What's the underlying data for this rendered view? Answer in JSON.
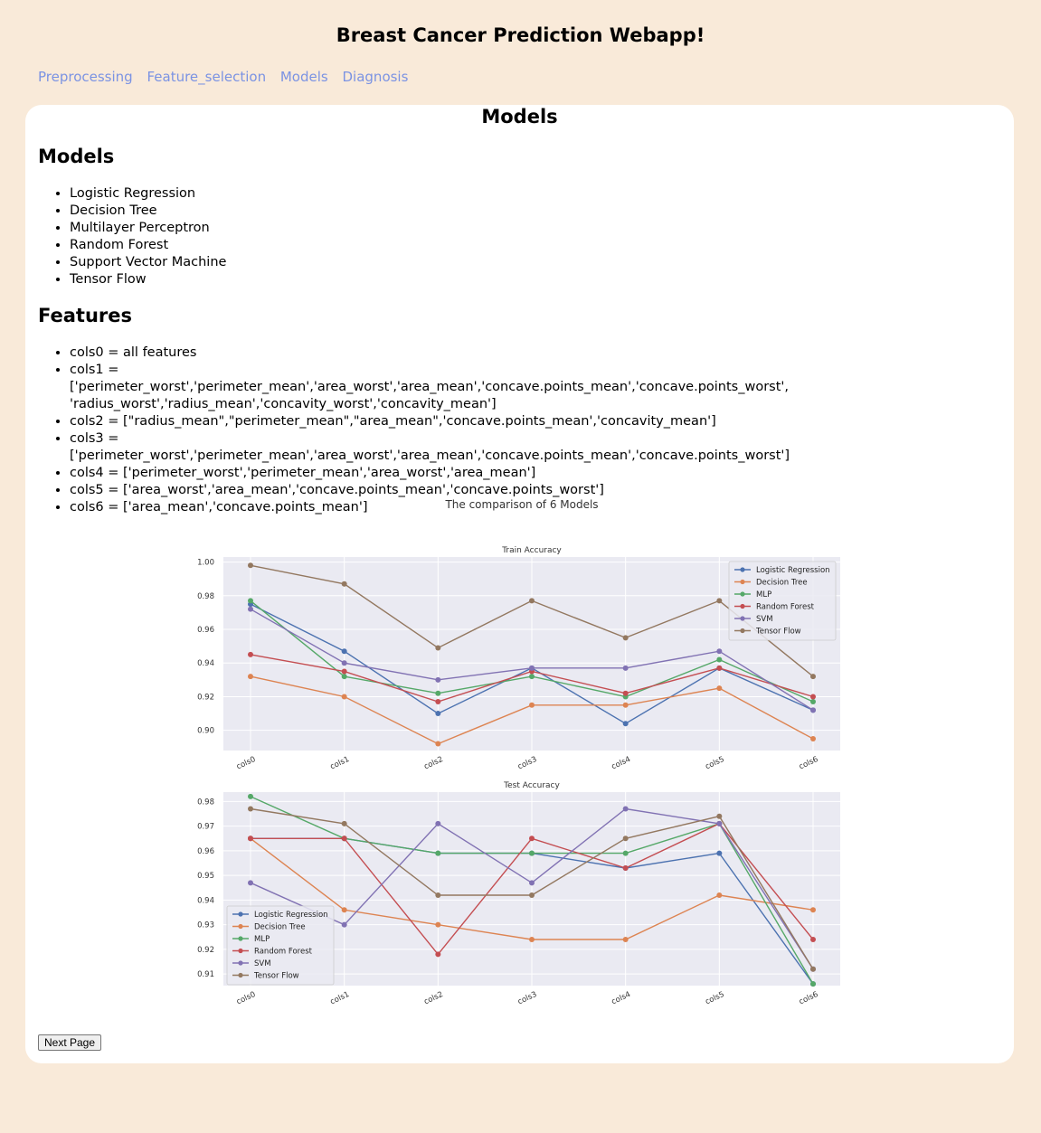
{
  "app": {
    "title": "Breast Cancer Prediction Webapp!"
  },
  "nav": [
    "Preprocessing",
    "Feature_selection",
    "Models",
    "Diagnosis"
  ],
  "page": {
    "title": "Models",
    "models_heading": "Models",
    "models": [
      "Logistic Regression",
      "Decision Tree",
      "Multilayer Perceptron",
      "Random Forest",
      "Support Vector Machine",
      "Tensor Flow"
    ],
    "features_heading": "Features",
    "features": [
      "cols0 = all features",
      "cols1 = ['perimeter_worst','perimeter_mean','area_worst','area_mean','concave.points_mean','concave.points_worst', 'radius_worst','radius_mean','concavity_worst','concavity_mean']",
      "cols2 = [\"radius_mean\",\"perimeter_mean\",\"area_mean\",'concave.points_mean','concavity_mean']",
      "cols3 = ['perimeter_worst','perimeter_mean','area_worst','area_mean','concave.points_mean','concave.points_worst']",
      "cols4 = ['perimeter_worst','perimeter_mean','area_worst','area_mean']",
      "cols5 = ['area_worst','area_mean','concave.points_mean','concave.points_worst']",
      "cols6 = ['area_mean','concave.points_mean']"
    ],
    "next_button": "Next Page"
  },
  "chart_data": [
    {
      "type": "line",
      "suptitle": "The comparison of 6 Models",
      "title": "Train Accuracy",
      "x": [
        "cols0",
        "cols1",
        "cols2",
        "cols3",
        "cols4",
        "cols5",
        "cols6"
      ],
      "ylim": [
        0.888,
        1.003
      ],
      "yticks": [
        0.9,
        0.92,
        0.94,
        0.96,
        0.98,
        1.0
      ],
      "yticklabels": [
        "0.90",
        "0.92",
        "0.94",
        "0.96",
        "0.98",
        "1.00"
      ],
      "legend": "top-right",
      "grid": true,
      "series": [
        {
          "name": "Logistic Regression",
          "color": "#4c72b0",
          "values": [
            0.975,
            0.947,
            0.91,
            0.937,
            0.904,
            0.937,
            0.912
          ]
        },
        {
          "name": "Decision Tree",
          "color": "#dd8452",
          "values": [
            0.932,
            0.92,
            0.892,
            0.915,
            0.915,
            0.925,
            0.895
          ]
        },
        {
          "name": "MLP",
          "color": "#55a868",
          "values": [
            0.977,
            0.932,
            0.922,
            0.932,
            0.92,
            0.942,
            0.917
          ]
        },
        {
          "name": "Random Forest",
          "color": "#c44e52",
          "values": [
            0.945,
            0.935,
            0.917,
            0.935,
            0.922,
            0.937,
            0.92
          ]
        },
        {
          "name": "SVM",
          "color": "#8172b3",
          "values": [
            0.972,
            0.94,
            0.93,
            0.937,
            0.937,
            0.947,
            0.912
          ]
        },
        {
          "name": "Tensor Flow",
          "color": "#937860",
          "values": [
            0.998,
            0.987,
            0.949,
            0.977,
            0.955,
            0.977,
            0.932
          ]
        }
      ]
    },
    {
      "type": "line",
      "title": "Test Accuracy",
      "x": [
        "cols0",
        "cols1",
        "cols2",
        "cols3",
        "cols4",
        "cols5",
        "cols6"
      ],
      "ylim": [
        0.9053,
        0.9838
      ],
      "yticks": [
        0.91,
        0.92,
        0.93,
        0.94,
        0.95,
        0.96,
        0.97,
        0.98
      ],
      "yticklabels": [
        "0.91",
        "0.92",
        "0.93",
        "0.94",
        "0.95",
        "0.96",
        "0.97",
        "0.98"
      ],
      "legend": "bottom-left",
      "grid": true,
      "series": [
        {
          "name": "Logistic Regression",
          "color": "#4c72b0",
          "values": [
            0.965,
            0.965,
            0.959,
            0.959,
            0.953,
            0.959,
            0.906
          ]
        },
        {
          "name": "Decision Tree",
          "color": "#dd8452",
          "values": [
            0.965,
            0.936,
            0.93,
            0.924,
            0.924,
            0.942,
            0.936
          ]
        },
        {
          "name": "MLP",
          "color": "#55a868",
          "values": [
            0.982,
            0.965,
            0.959,
            0.959,
            0.959,
            0.971,
            0.906
          ]
        },
        {
          "name": "Random Forest",
          "color": "#c44e52",
          "values": [
            0.965,
            0.965,
            0.918,
            0.965,
            0.953,
            0.971,
            0.924
          ]
        },
        {
          "name": "SVM",
          "color": "#8172b3",
          "values": [
            0.947,
            0.93,
            0.971,
            0.947,
            0.977,
            0.971,
            0.912
          ]
        },
        {
          "name": "Tensor Flow",
          "color": "#937860",
          "values": [
            0.977,
            0.971,
            0.942,
            0.942,
            0.965,
            0.974,
            0.912
          ]
        }
      ]
    }
  ]
}
